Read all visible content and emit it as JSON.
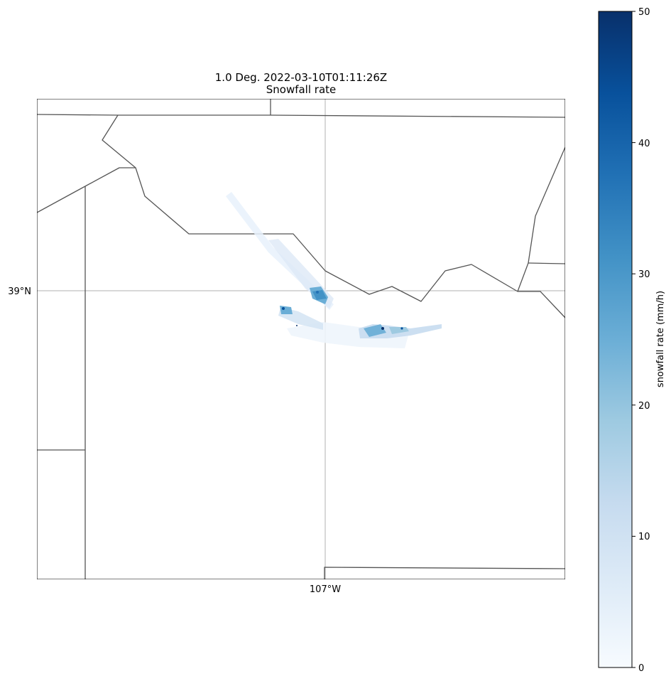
{
  "figure": {
    "title_line1": "1.0 Deg. 2022-03-10T01:11:26Z",
    "title_line2": "Snowfall rate"
  },
  "map": {
    "lat_label": "39°N",
    "lon_label": "107°W",
    "gridlines": true,
    "boundary_color": "#555555",
    "gridline_color": "#b0b0b0"
  },
  "colorbar": {
    "label": "snowfall rate (mm/h)",
    "colormap": "Blues",
    "ticks": [
      "0",
      "10",
      "20",
      "30",
      "40",
      "50"
    ],
    "range": [
      0,
      50
    ],
    "stops": [
      "#f7fbff",
      "#deebf7",
      "#c6dbef",
      "#9ecae1",
      "#6baed6",
      "#4292c6",
      "#2171b5",
      "#08519c",
      "#08306b"
    ]
  },
  "chart_data": {
    "type": "heatmap",
    "title": "1.0 Deg. 2022-03-10T01:11:26Z\nSnowfall rate",
    "variable": "snowfall rate (mm/h)",
    "value_range": [
      0,
      50
    ],
    "grid": true,
    "colorbar_position": "right"
  }
}
